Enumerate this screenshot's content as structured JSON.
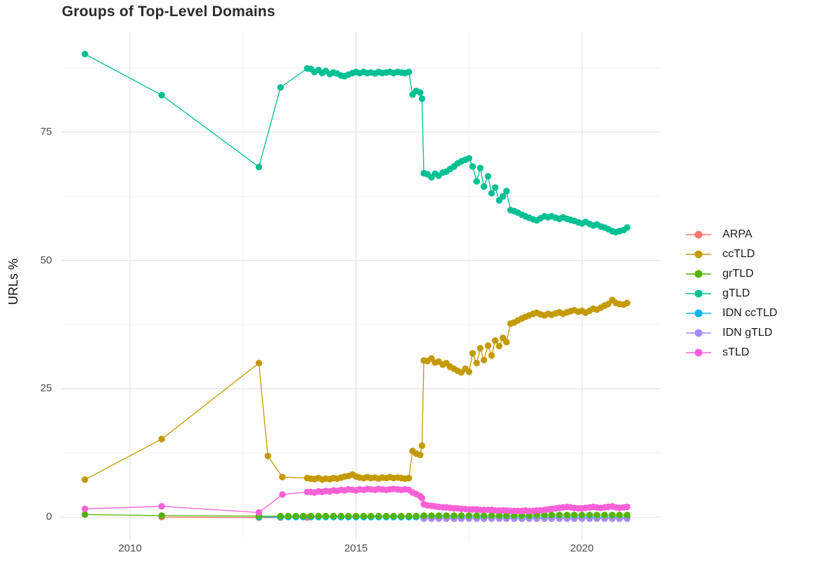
{
  "page": {
    "background": "#ffffff"
  },
  "chart_data": {
    "type": "line",
    "title": "Groups of Top-Level Domains",
    "xlabel": "",
    "ylabel": "URLs %",
    "x_ticks": [
      2010,
      2015,
      2020
    ],
    "x_minor": [
      2012.5,
      2017.5
    ],
    "y_ticks": [
      0,
      25,
      50,
      75
    ],
    "y_minor": [
      12.5,
      37.5,
      62.5,
      87.5
    ],
    "xlim": [
      2008.49,
      2021.74
    ],
    "ylim": [
      -4.37,
      94.57
    ],
    "grid": true,
    "legend_position": "right",
    "style": {
      "grid_major": "#e3e3e3",
      "grid_minor": "#f0f0f0",
      "axis_text": "#4d4d4d",
      "title_color": "#2b2b2b",
      "text_color": "#1a1a1a"
    },
    "series": [
      {
        "name": "ARPA",
        "color": "#F8766D",
        "z": 1,
        "x": [
          2010.7,
          2012.85,
          2013.33,
          2013.92
        ],
        "y": [
          0.0,
          -0.1,
          -0.1,
          -0.1
        ]
      },
      {
        "name": "ccTLD",
        "color": "#C49A00",
        "z": 6,
        "x": [
          2009.0,
          2010.7,
          2012.85,
          2013.05,
          2013.37,
          2013.92,
          2014.0,
          2014.08,
          2014.17,
          2014.25,
          2014.33,
          2014.42,
          2014.5,
          2014.58,
          2014.67,
          2014.75,
          2014.83,
          2014.92,
          2015.0,
          2015.08,
          2015.17,
          2015.25,
          2015.33,
          2015.42,
          2015.5,
          2015.58,
          2015.67,
          2015.75,
          2015.83,
          2015.92,
          2016.0,
          2016.08,
          2016.17,
          2016.25,
          2016.33,
          2016.42,
          2016.46,
          2016.5,
          2016.58,
          2016.67,
          2016.75,
          2016.83,
          2016.92,
          2017.0,
          2017.08,
          2017.17,
          2017.25,
          2017.33,
          2017.42,
          2017.5,
          2017.58,
          2017.67,
          2017.75,
          2017.83,
          2017.92,
          2018.0,
          2018.08,
          2018.17,
          2018.25,
          2018.33,
          2018.42,
          2018.5,
          2018.58,
          2018.67,
          2018.75,
          2018.83,
          2018.92,
          2019.0,
          2019.08,
          2019.17,
          2019.25,
          2019.33,
          2019.42,
          2019.5,
          2019.58,
          2019.67,
          2019.75,
          2019.83,
          2019.92,
          2020.0,
          2020.08,
          2020.17,
          2020.25,
          2020.33,
          2020.42,
          2020.5,
          2020.58,
          2020.67,
          2020.75,
          2020.83,
          2020.92,
          2021.0
        ],
        "y": [
          7.3,
          15.2,
          30.0,
          11.9,
          7.8,
          7.6,
          7.5,
          7.4,
          7.6,
          7.3,
          7.5,
          7.4,
          7.6,
          7.5,
          7.7,
          7.9,
          8.0,
          8.3,
          7.9,
          7.7,
          7.6,
          7.8,
          7.6,
          7.7,
          7.5,
          7.7,
          7.6,
          7.8,
          7.6,
          7.7,
          7.6,
          7.5,
          7.6,
          12.9,
          12.4,
          12.1,
          13.9,
          30.5,
          30.4,
          30.9,
          30.1,
          30.3,
          29.7,
          30.0,
          29.3,
          28.9,
          28.5,
          28.2,
          28.9,
          28.3,
          31.9,
          30.0,
          32.9,
          30.6,
          33.4,
          31.5,
          34.4,
          33.3,
          34.9,
          34.1,
          37.7,
          37.9,
          38.3,
          38.7,
          39.0,
          39.3,
          39.6,
          39.8,
          39.5,
          39.3,
          39.6,
          39.4,
          39.7,
          39.9,
          39.6,
          39.9,
          40.1,
          40.3,
          40.0,
          40.2,
          39.8,
          40.2,
          40.6,
          40.4,
          40.8,
          41.2,
          41.5,
          42.3,
          41.7,
          41.5,
          41.4,
          41.7
        ]
      },
      {
        "name": "grTLD",
        "color": "#53B400",
        "z": 5,
        "x": [
          2009.0,
          2010.7,
          2012.85,
          2013.33,
          2013.5,
          2013.67,
          2013.83,
          2014.0,
          2014.17,
          2014.33,
          2014.5,
          2014.67,
          2014.83,
          2015.0,
          2015.17,
          2015.33,
          2015.5,
          2015.67,
          2015.83,
          2016.0,
          2016.17,
          2016.33,
          2016.5,
          2016.67,
          2016.83,
          2017.0,
          2017.17,
          2017.33,
          2017.5,
          2017.67,
          2017.83,
          2018.0,
          2018.17,
          2018.33,
          2018.5,
          2018.67,
          2018.83,
          2019.0,
          2019.17,
          2019.33,
          2019.5,
          2019.67,
          2019.83,
          2020.0,
          2020.17,
          2020.33,
          2020.5,
          2020.67,
          2020.83,
          2021.0
        ],
        "y": [
          0.5,
          0.3,
          0.2,
          0.2,
          0.2,
          0.2,
          0.2,
          0.2,
          0.2,
          0.2,
          0.2,
          0.2,
          0.2,
          0.2,
          0.2,
          0.2,
          0.2,
          0.2,
          0.2,
          0.2,
          0.2,
          0.2,
          0.3,
          0.3,
          0.3,
          0.3,
          0.3,
          0.3,
          0.3,
          0.3,
          0.3,
          0.3,
          0.3,
          0.3,
          0.3,
          0.3,
          0.3,
          0.4,
          0.4,
          0.4,
          0.4,
          0.4,
          0.4,
          0.4,
          0.4,
          0.4,
          0.4,
          0.4,
          0.4,
          0.4
        ]
      },
      {
        "name": "gTLD",
        "color": "#00C094",
        "z": 4,
        "x": [
          2009.0,
          2010.7,
          2012.85,
          2013.33,
          2013.92,
          2014.0,
          2014.08,
          2014.17,
          2014.25,
          2014.33,
          2014.42,
          2014.5,
          2014.58,
          2014.67,
          2014.75,
          2014.83,
          2014.92,
          2015.0,
          2015.08,
          2015.17,
          2015.25,
          2015.33,
          2015.42,
          2015.5,
          2015.58,
          2015.67,
          2015.75,
          2015.83,
          2015.92,
          2016.0,
          2016.08,
          2016.17,
          2016.25,
          2016.33,
          2016.42,
          2016.46,
          2016.5,
          2016.58,
          2016.67,
          2016.75,
          2016.83,
          2016.92,
          2017.0,
          2017.08,
          2017.17,
          2017.25,
          2017.33,
          2017.42,
          2017.5,
          2017.58,
          2017.67,
          2017.75,
          2017.83,
          2017.92,
          2018.0,
          2018.08,
          2018.17,
          2018.25,
          2018.33,
          2018.42,
          2018.5,
          2018.58,
          2018.67,
          2018.75,
          2018.83,
          2018.92,
          2019.0,
          2019.08,
          2019.17,
          2019.25,
          2019.33,
          2019.42,
          2019.5,
          2019.58,
          2019.67,
          2019.75,
          2019.83,
          2019.92,
          2020.0,
          2020.08,
          2020.17,
          2020.25,
          2020.33,
          2020.42,
          2020.5,
          2020.58,
          2020.67,
          2020.75,
          2020.83,
          2020.92,
          2021.0
        ],
        "y": [
          90.2,
          82.2,
          68.2,
          83.7,
          87.4,
          87.3,
          86.7,
          87.1,
          86.5,
          86.9,
          86.3,
          86.6,
          86.4,
          86.0,
          85.9,
          86.2,
          86.5,
          86.7,
          86.5,
          86.7,
          86.5,
          86.6,
          86.4,
          86.7,
          86.5,
          86.6,
          86.7,
          86.5,
          86.7,
          86.6,
          86.5,
          86.7,
          82.3,
          83.0,
          82.7,
          81.5,
          67.0,
          66.8,
          66.2,
          66.9,
          66.5,
          67.1,
          67.3,
          67.8,
          68.3,
          68.9,
          69.3,
          69.6,
          69.9,
          68.3,
          65.4,
          68.0,
          64.4,
          66.4,
          63.1,
          64.2,
          61.7,
          62.5,
          63.5,
          59.8,
          59.6,
          59.3,
          58.9,
          58.6,
          58.3,
          58.0,
          57.8,
          58.2,
          58.6,
          58.4,
          58.6,
          58.3,
          58.1,
          58.4,
          58.1,
          57.9,
          57.7,
          57.4,
          57.2,
          57.5,
          57.1,
          56.8,
          57.0,
          56.6,
          56.4,
          56.1,
          55.7,
          55.5,
          55.7,
          55.9,
          56.4
        ]
      },
      {
        "name": "IDN ccTLD",
        "color": "#00B6EB",
        "z": 2,
        "x": [
          2012.85,
          2013.33,
          2013.5,
          2013.67,
          2013.83,
          2014.0,
          2014.17,
          2014.33,
          2014.5,
          2014.67,
          2014.83,
          2015.0,
          2015.17,
          2015.33,
          2015.5,
          2015.67,
          2015.83,
          2016.0,
          2016.17,
          2016.33,
          2016.5,
          2016.67,
          2016.83,
          2017.0,
          2017.17,
          2017.33,
          2017.5,
          2017.67,
          2017.83,
          2018.0,
          2018.17,
          2018.33,
          2018.5,
          2018.67,
          2018.83,
          2019.0,
          2019.17,
          2019.33,
          2019.5,
          2019.67,
          2019.83,
          2020.0,
          2020.17,
          2020.33,
          2020.5,
          2020.67,
          2020.83,
          2021.0
        ],
        "y": [
          0.0,
          0.0,
          0.0,
          0.0,
          0.0,
          0.0,
          0.0,
          0.0,
          0.0,
          0.0,
          0.0,
          0.0,
          0.0,
          0.0,
          0.0,
          0.0,
          0.0,
          0.0,
          0.0,
          0.0,
          0.0,
          0.0,
          0.0,
          0.0,
          0.0,
          0.0,
          0.0,
          0.0,
          0.0,
          0.0,
          0.0,
          0.0,
          0.0,
          0.0,
          0.0,
          0.0,
          0.0,
          0.0,
          0.0,
          0.0,
          0.0,
          0.0,
          0.0,
          0.0,
          0.0,
          0.0,
          0.0,
          0.0
        ]
      },
      {
        "name": "IDN gTLD",
        "color": "#A58AFF",
        "z": 3,
        "x": [
          2016.5,
          2016.67,
          2016.83,
          2017.0,
          2017.17,
          2017.33,
          2017.5,
          2017.67,
          2017.83,
          2018.0,
          2018.17,
          2018.33,
          2018.5,
          2018.67,
          2018.83,
          2019.0,
          2019.17,
          2019.33,
          2019.5,
          2019.67,
          2019.83,
          2020.0,
          2020.17,
          2020.33,
          2020.5,
          2020.67,
          2020.83,
          2021.0
        ],
        "y": [
          -0.3,
          -0.3,
          -0.3,
          -0.3,
          -0.3,
          -0.3,
          -0.3,
          -0.3,
          -0.3,
          -0.3,
          -0.3,
          -0.3,
          -0.3,
          -0.3,
          -0.3,
          -0.3,
          -0.3,
          -0.3,
          -0.3,
          -0.3,
          -0.3,
          -0.3,
          -0.3,
          -0.3,
          -0.3,
          -0.3,
          -0.3,
          -0.3
        ]
      },
      {
        "name": "sTLD",
        "color": "#FB61D7",
        "z": 7,
        "x": [
          2009.0,
          2010.7,
          2012.85,
          2013.37,
          2013.92,
          2014.0,
          2014.08,
          2014.17,
          2014.25,
          2014.33,
          2014.42,
          2014.5,
          2014.58,
          2014.67,
          2014.75,
          2014.83,
          2014.92,
          2015.0,
          2015.08,
          2015.17,
          2015.25,
          2015.33,
          2015.42,
          2015.5,
          2015.58,
          2015.67,
          2015.75,
          2015.83,
          2015.92,
          2016.0,
          2016.08,
          2016.17,
          2016.25,
          2016.33,
          2016.42,
          2016.46,
          2016.5,
          2016.58,
          2016.67,
          2016.75,
          2016.83,
          2016.92,
          2017.0,
          2017.08,
          2017.17,
          2017.25,
          2017.33,
          2017.42,
          2017.5,
          2017.58,
          2017.67,
          2017.75,
          2017.83,
          2017.92,
          2018.0,
          2018.08,
          2018.17,
          2018.25,
          2018.33,
          2018.42,
          2018.5,
          2018.58,
          2018.67,
          2018.75,
          2018.83,
          2018.92,
          2019.0,
          2019.08,
          2019.17,
          2019.25,
          2019.33,
          2019.42,
          2019.5,
          2019.58,
          2019.67,
          2019.75,
          2019.83,
          2019.92,
          2020.0,
          2020.08,
          2020.17,
          2020.25,
          2020.33,
          2020.42,
          2020.5,
          2020.58,
          2020.67,
          2020.75,
          2020.83,
          2020.92,
          2021.0
        ],
        "y": [
          1.6,
          2.1,
          0.9,
          4.4,
          4.9,
          4.9,
          4.8,
          5.0,
          4.9,
          5.1,
          5.0,
          5.2,
          5.1,
          5.3,
          5.2,
          5.4,
          5.3,
          5.2,
          5.4,
          5.3,
          5.5,
          5.4,
          5.3,
          5.5,
          5.4,
          5.3,
          5.4,
          5.5,
          5.4,
          5.3,
          5.4,
          5.3,
          4.8,
          4.5,
          4.1,
          3.7,
          2.5,
          2.3,
          2.2,
          2.1,
          2.0,
          1.9,
          1.9,
          1.8,
          1.7,
          1.7,
          1.6,
          1.6,
          1.5,
          1.5,
          1.5,
          1.4,
          1.4,
          1.4,
          1.4,
          1.3,
          1.3,
          1.3,
          1.3,
          1.2,
          1.2,
          1.2,
          1.2,
          1.3,
          1.2,
          1.2,
          1.3,
          1.3,
          1.4,
          1.5,
          1.6,
          1.7,
          1.8,
          1.9,
          2.0,
          1.9,
          1.8,
          1.7,
          1.7,
          1.8,
          1.9,
          2.0,
          1.9,
          1.8,
          1.9,
          2.0,
          2.1,
          1.9,
          1.8,
          1.9,
          2.0
        ]
      }
    ]
  }
}
